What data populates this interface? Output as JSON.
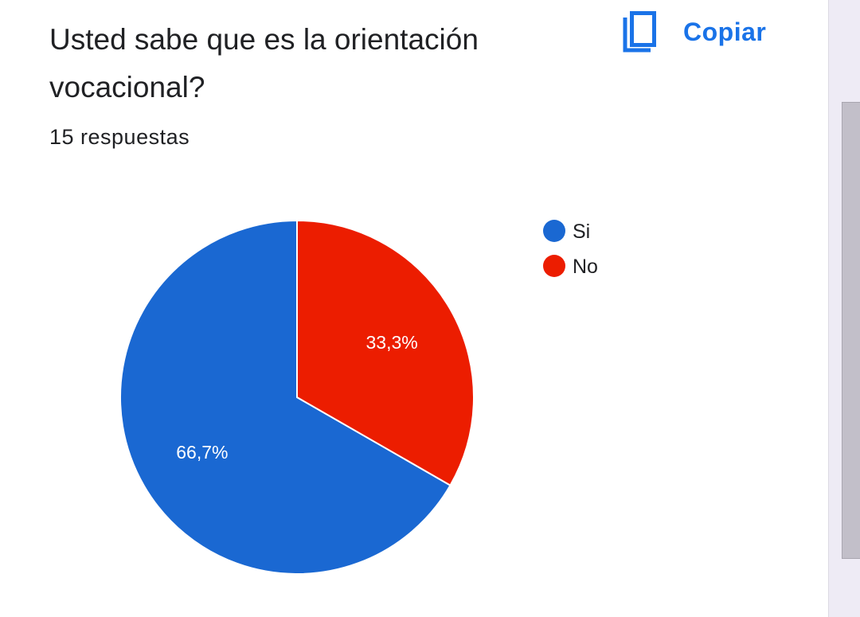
{
  "question": {
    "title": "Usted sabe que es la orientación vocacional?",
    "responses": "15 respuestas"
  },
  "toolbar": {
    "copy_label": "Copiar",
    "copy_icon": "copy-icon"
  },
  "colors": {
    "accent": "#1a73e8",
    "si": "#1a68d2",
    "no": "#ec1d00"
  },
  "chart_data": {
    "type": "pie",
    "title": "",
    "categories": [
      "Si",
      "No"
    ],
    "values": [
      66.7,
      33.3
    ],
    "labels": [
      "66,7%",
      "33,3%"
    ],
    "colors": [
      "#1a68d2",
      "#ec1d00"
    ],
    "legend": "top-right"
  }
}
